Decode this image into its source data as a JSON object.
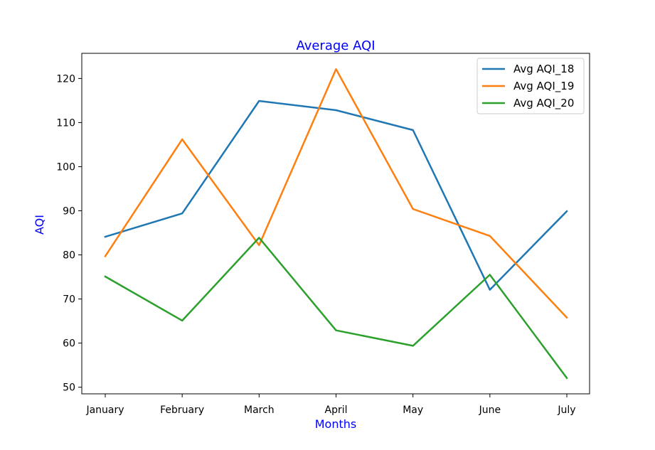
{
  "chart_data": {
    "type": "line",
    "title": "Average AQI",
    "xlabel": "Months",
    "ylabel": "AQI",
    "label_color": "#0000ff",
    "categories": [
      "January",
      "February",
      "March",
      "April",
      "May",
      "June",
      "July"
    ],
    "ylim": [
      48.5,
      125.7
    ],
    "yticks": [
      50,
      60,
      70,
      80,
      90,
      100,
      110,
      120
    ],
    "grid": false,
    "legend_position": "top-right",
    "series": [
      {
        "name": "Avg AQI_18",
        "color": "#1f77b4",
        "values": [
          84.1,
          89.4,
          114.9,
          112.8,
          108.3,
          72.1,
          89.9
        ]
      },
      {
        "name": "Avg AQI_19",
        "color": "#ff7f0e",
        "values": [
          79.7,
          106.2,
          82.2,
          122.1,
          90.4,
          84.3,
          65.8
        ]
      },
      {
        "name": "Avg AQI_20",
        "color": "#2ca02c",
        "values": [
          75.1,
          65.1,
          83.9,
          62.9,
          59.4,
          75.5,
          52.1
        ]
      }
    ]
  }
}
